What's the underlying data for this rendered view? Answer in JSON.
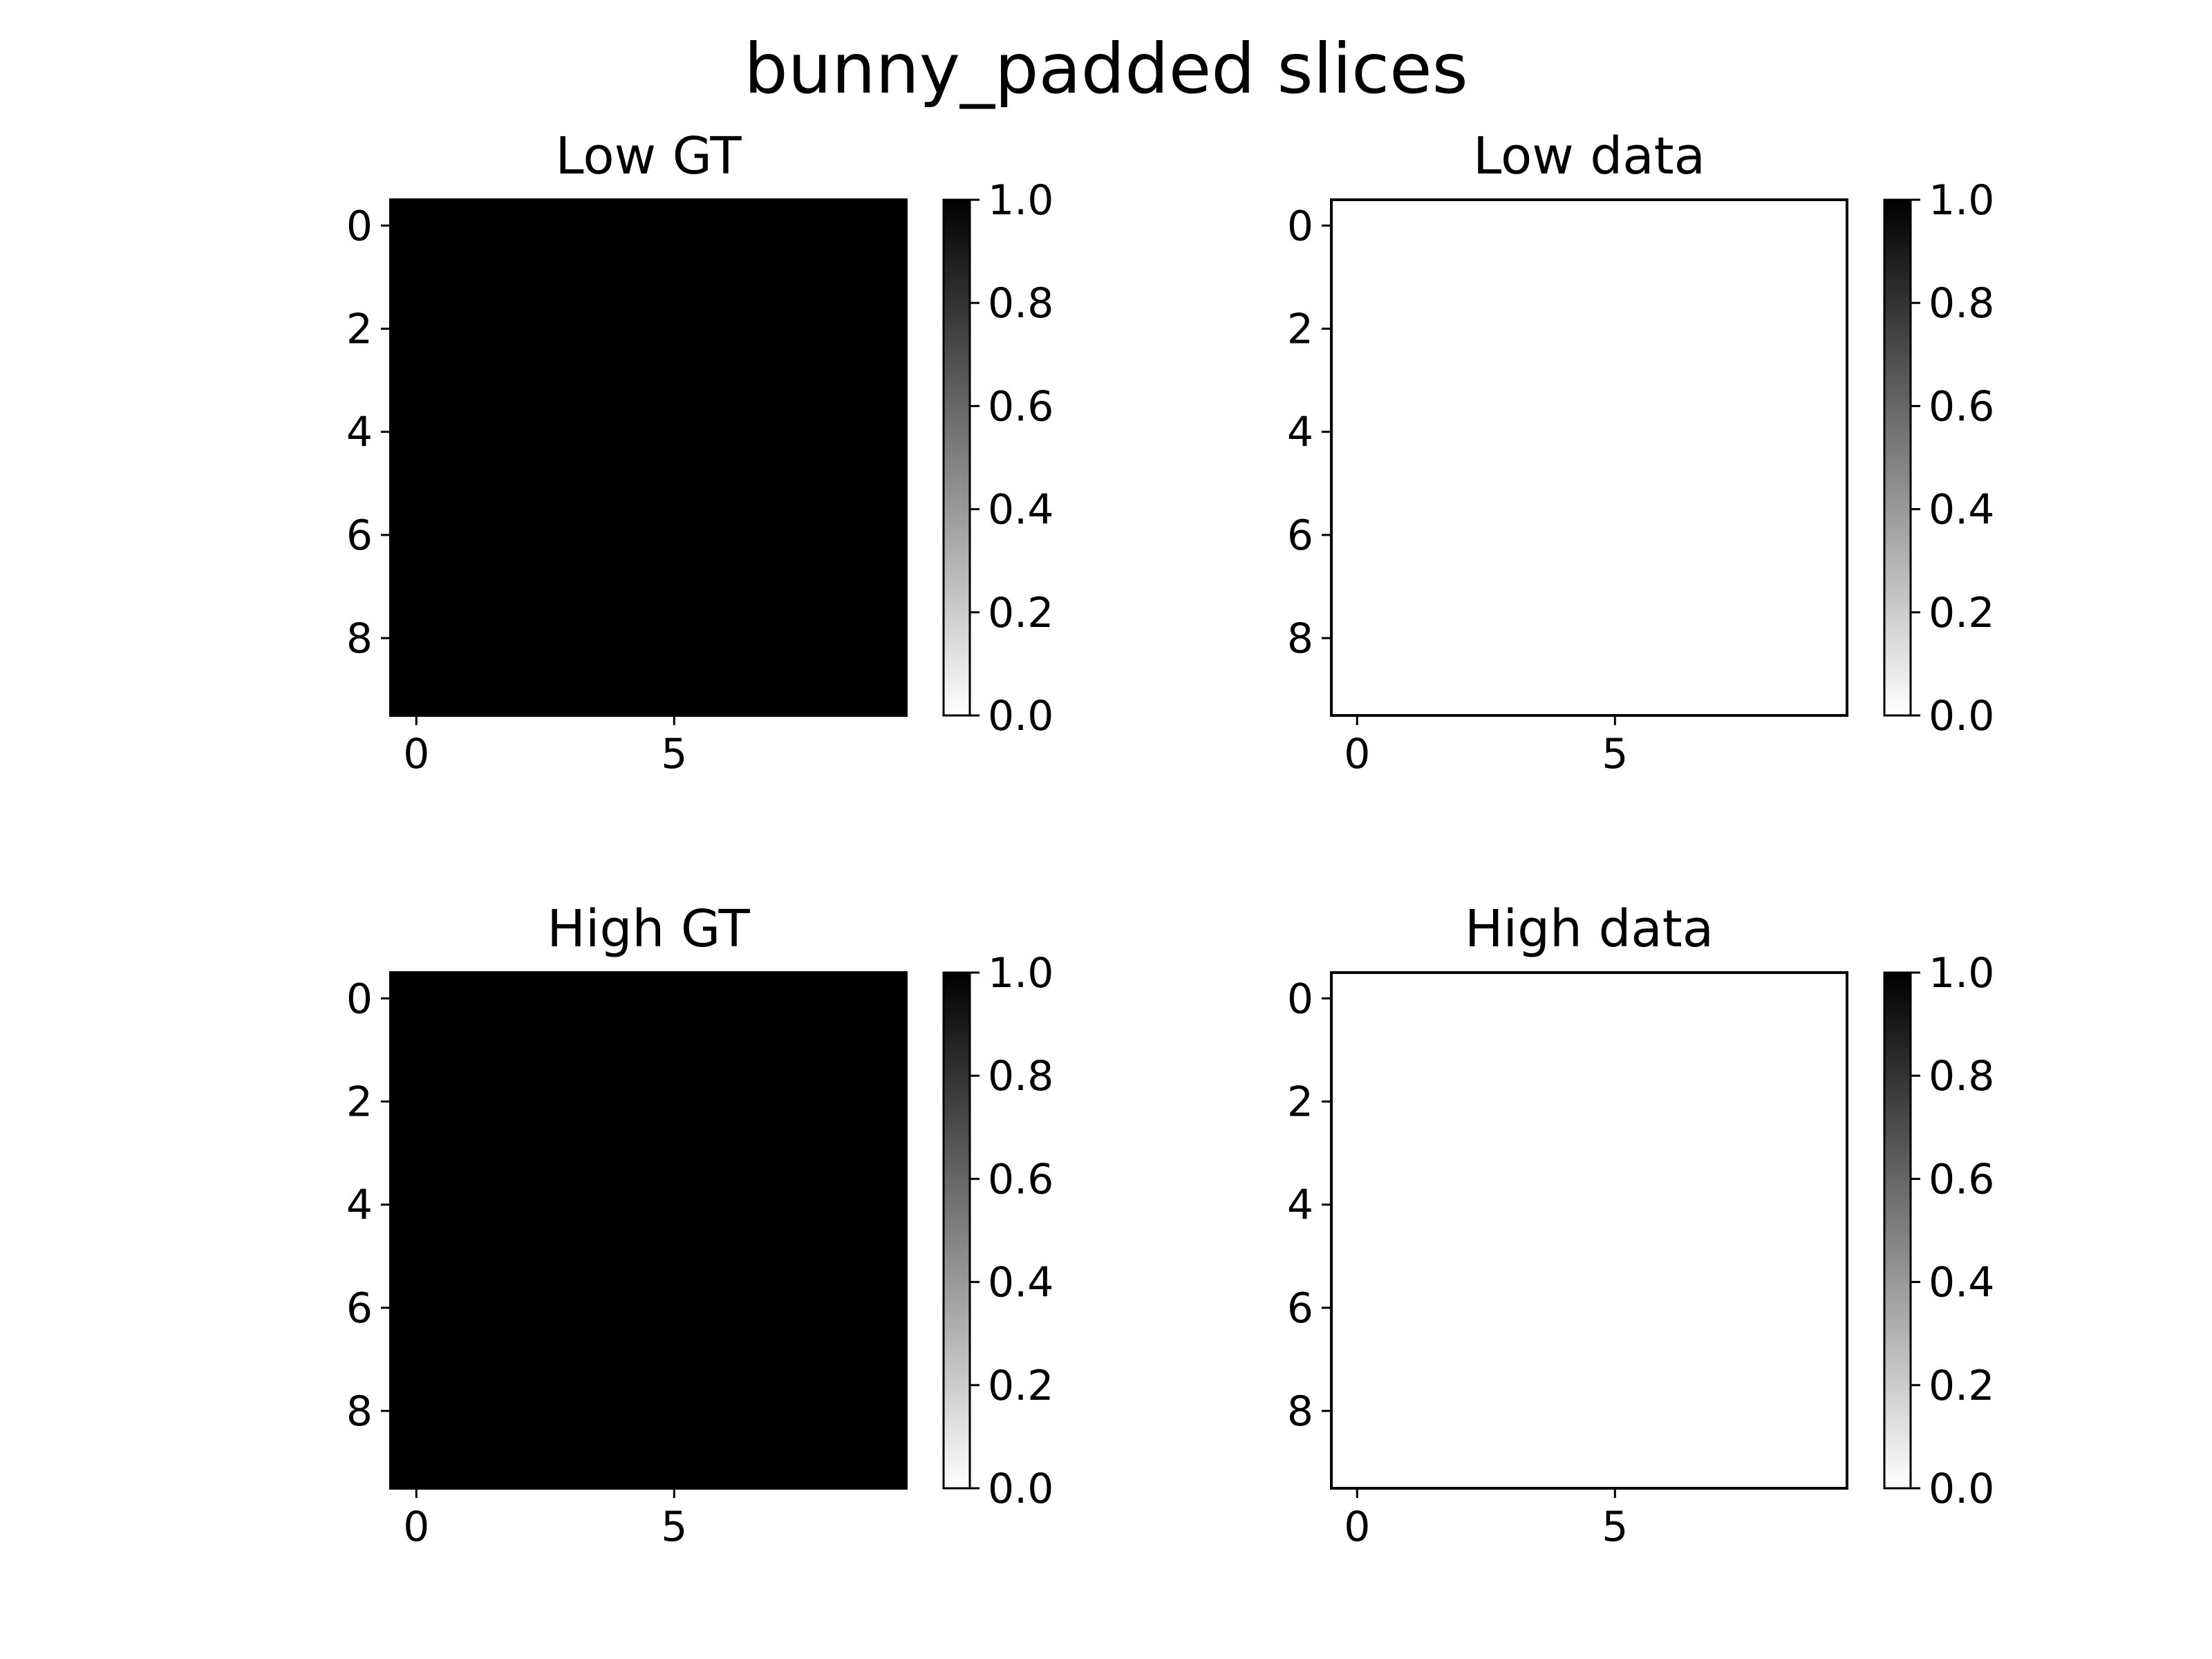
{
  "figure": {
    "title": "bunny_padded slices"
  },
  "chart_data": [
    {
      "type": "heatmap",
      "title": "Low GT",
      "shape": [
        10,
        10
      ],
      "value": 1.0,
      "cmap": "gray_r",
      "x_ticks": [
        0,
        5
      ],
      "y_ticks": [
        0,
        2,
        4,
        6,
        8
      ],
      "xlim": [
        -0.5,
        9.5
      ],
      "ylim": [
        9.5,
        -0.5
      ],
      "colorbar": {
        "range": [
          0.0,
          1.0
        ],
        "ticks": [
          "0.0",
          "0.2",
          "0.4",
          "0.6",
          "0.8",
          "1.0"
        ]
      }
    },
    {
      "type": "heatmap",
      "title": "Low data",
      "shape": [
        10,
        10
      ],
      "value": 0.0,
      "cmap": "gray_r",
      "x_ticks": [
        0,
        5
      ],
      "y_ticks": [
        0,
        2,
        4,
        6,
        8
      ],
      "xlim": [
        -0.5,
        9.5
      ],
      "ylim": [
        9.5,
        -0.5
      ],
      "colorbar": {
        "range": [
          0.0,
          1.0
        ],
        "ticks": [
          "0.0",
          "0.2",
          "0.4",
          "0.6",
          "0.8",
          "1.0"
        ]
      }
    },
    {
      "type": "heatmap",
      "title": "High GT",
      "shape": [
        10,
        10
      ],
      "value": 1.0,
      "cmap": "gray_r",
      "x_ticks": [
        0,
        5
      ],
      "y_ticks": [
        0,
        2,
        4,
        6,
        8
      ],
      "xlim": [
        -0.5,
        9.5
      ],
      "ylim": [
        9.5,
        -0.5
      ],
      "colorbar": {
        "range": [
          0.0,
          1.0
        ],
        "ticks": [
          "0.0",
          "0.2",
          "0.4",
          "0.6",
          "0.8",
          "1.0"
        ]
      }
    },
    {
      "type": "heatmap",
      "title": "High data",
      "shape": [
        10,
        10
      ],
      "value": 0.0,
      "cmap": "gray_r",
      "x_ticks": [
        0,
        5
      ],
      "y_ticks": [
        0,
        2,
        4,
        6,
        8
      ],
      "xlim": [
        -0.5,
        9.5
      ],
      "ylim": [
        9.5,
        -0.5
      ],
      "colorbar": {
        "range": [
          0.0,
          1.0
        ],
        "ticks": [
          "0.0",
          "0.2",
          "0.4",
          "0.6",
          "0.8",
          "1.0"
        ]
      }
    }
  ]
}
